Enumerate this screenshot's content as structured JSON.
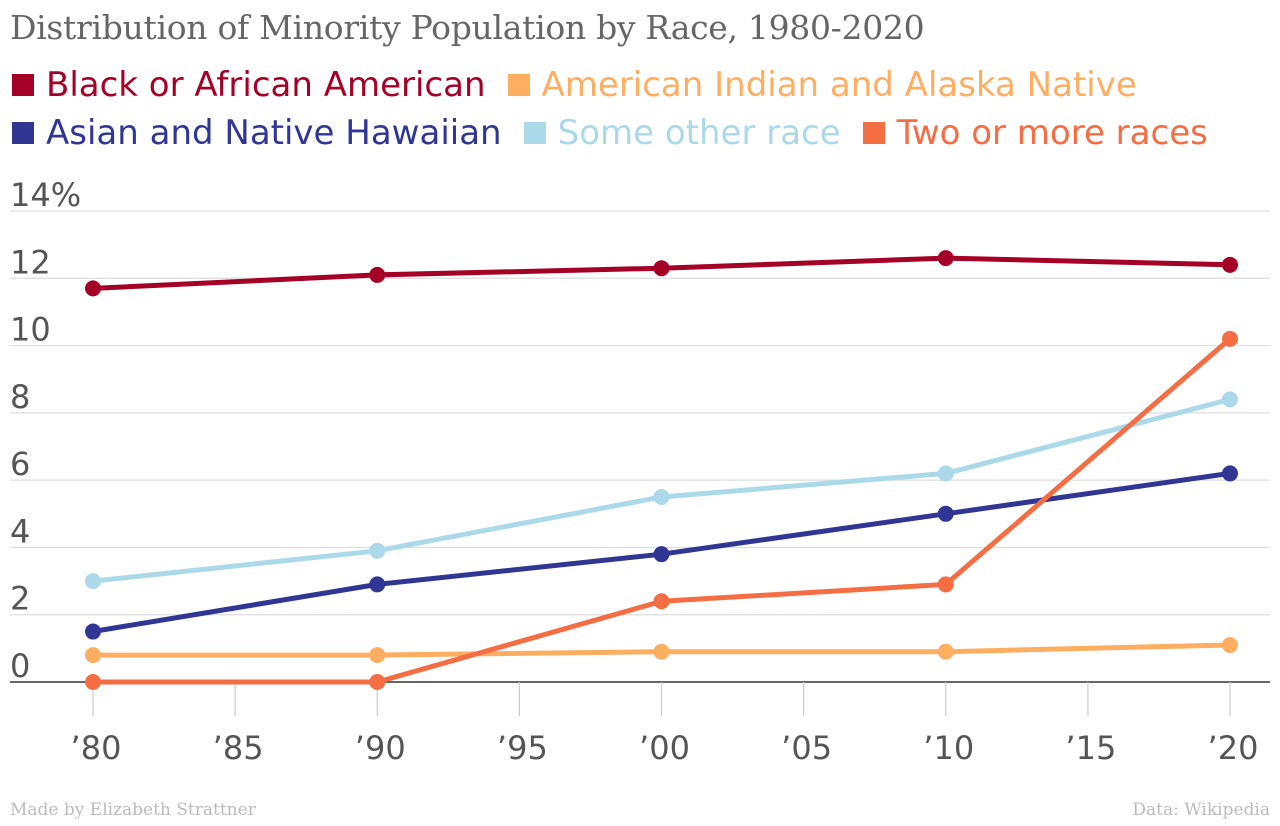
{
  "title": "Distribution of Minority Population by Race, 1980-2020",
  "footer": {
    "credit": "Made by Elizabeth Strattner",
    "source": "Data: Wikipedia"
  },
  "chart_data": {
    "type": "line",
    "title": "Distribution of Minority Population by Race, 1980-2020",
    "xlabel": "",
    "ylabel": "",
    "x": [
      1980,
      1990,
      2000,
      2010,
      2020
    ],
    "xlim": [
      1980,
      2020
    ],
    "ylim": [
      0,
      14
    ],
    "y_ticks": [
      0,
      2,
      4,
      6,
      8,
      10,
      12,
      14
    ],
    "y_tick_labels": [
      "0",
      "2",
      "4",
      "6",
      "8",
      "10",
      "12",
      "14%"
    ],
    "x_ticks": [
      1980,
      1985,
      1990,
      1995,
      2000,
      2005,
      2010,
      2015,
      2020
    ],
    "x_tick_labels": [
      "’80",
      "’85",
      "’90",
      "’95",
      "’00",
      "’05",
      "’10",
      "’15",
      "’20"
    ],
    "grid": true,
    "legend_position": "top",
    "series": [
      {
        "name": "Black or African American",
        "color": "#a50026",
        "values": [
          11.7,
          12.1,
          12.3,
          12.6,
          12.4
        ]
      },
      {
        "name": "American Indian and Alaska Native",
        "color": "#fdae61",
        "values": [
          0.8,
          0.8,
          0.9,
          0.9,
          1.1
        ]
      },
      {
        "name": "Asian and Native Hawaiian",
        "color": "#313695",
        "values": [
          1.5,
          2.9,
          3.8,
          5.0,
          6.2
        ]
      },
      {
        "name": "Some other race",
        "color": "#abd9e9",
        "values": [
          3.0,
          3.9,
          5.5,
          6.2,
          8.4
        ]
      },
      {
        "name": "Two or more races",
        "color": "#f46d43",
        "values": [
          0,
          0,
          2.4,
          2.9,
          10.2
        ]
      }
    ]
  }
}
